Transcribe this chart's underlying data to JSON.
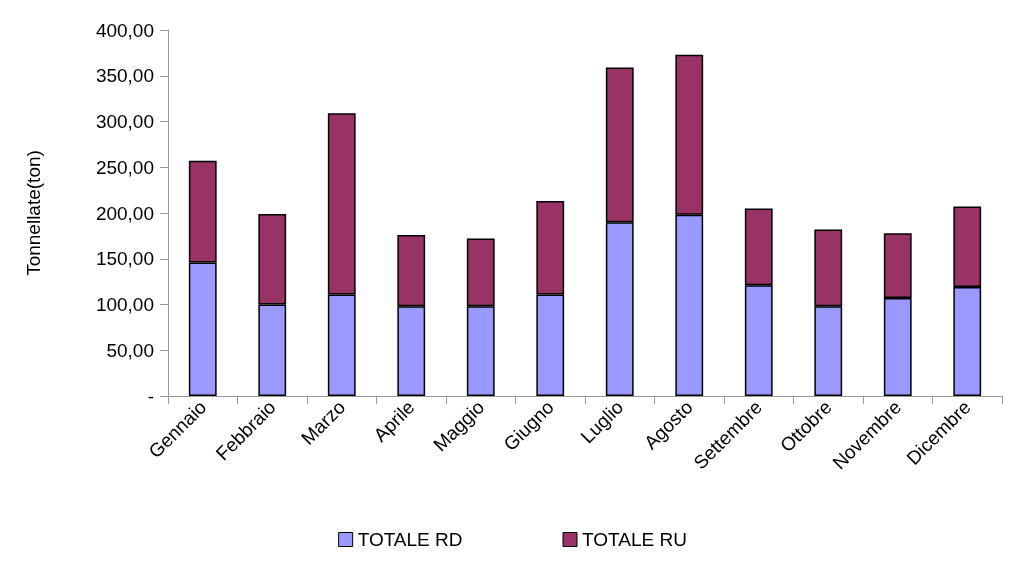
{
  "chart_data": {
    "type": "bar",
    "stacked": true,
    "ylabel": "Tonnellate(ton)",
    "categories": [
      "Gennaio",
      "Febbraio",
      "Marzo",
      "Aprile",
      "Maggio",
      "Giugno",
      "Luglio",
      "Agosto",
      "Settembre",
      "Ottobre",
      "Novembre",
      "Dicembre"
    ],
    "series": [
      {
        "name": "TOTALE RD",
        "color": "#9999ff",
        "values": [
          146,
          100,
          111,
          98,
          98,
          111,
          190,
          198,
          121,
          98,
          107,
          119
        ]
      },
      {
        "name": "TOTALE RU",
        "color": "#993366",
        "values": [
          111,
          99,
          198,
          78,
          74,
          102,
          169,
          175,
          84,
          84,
          71,
          88
        ]
      }
    ],
    "ylim": [
      0,
      400
    ],
    "yticks": [
      {
        "value": 0,
        "label": "-"
      },
      {
        "value": 50,
        "label": "50,00"
      },
      {
        "value": 100,
        "label": "100,00"
      },
      {
        "value": 150,
        "label": "150,00"
      },
      {
        "value": 200,
        "label": "200,00"
      },
      {
        "value": 250,
        "label": "250,00"
      },
      {
        "value": 300,
        "label": "300,00"
      },
      {
        "value": 350,
        "label": "350,00"
      },
      {
        "value": 400,
        "label": "400,00"
      }
    ],
    "grid": false,
    "legend": "bottom"
  }
}
